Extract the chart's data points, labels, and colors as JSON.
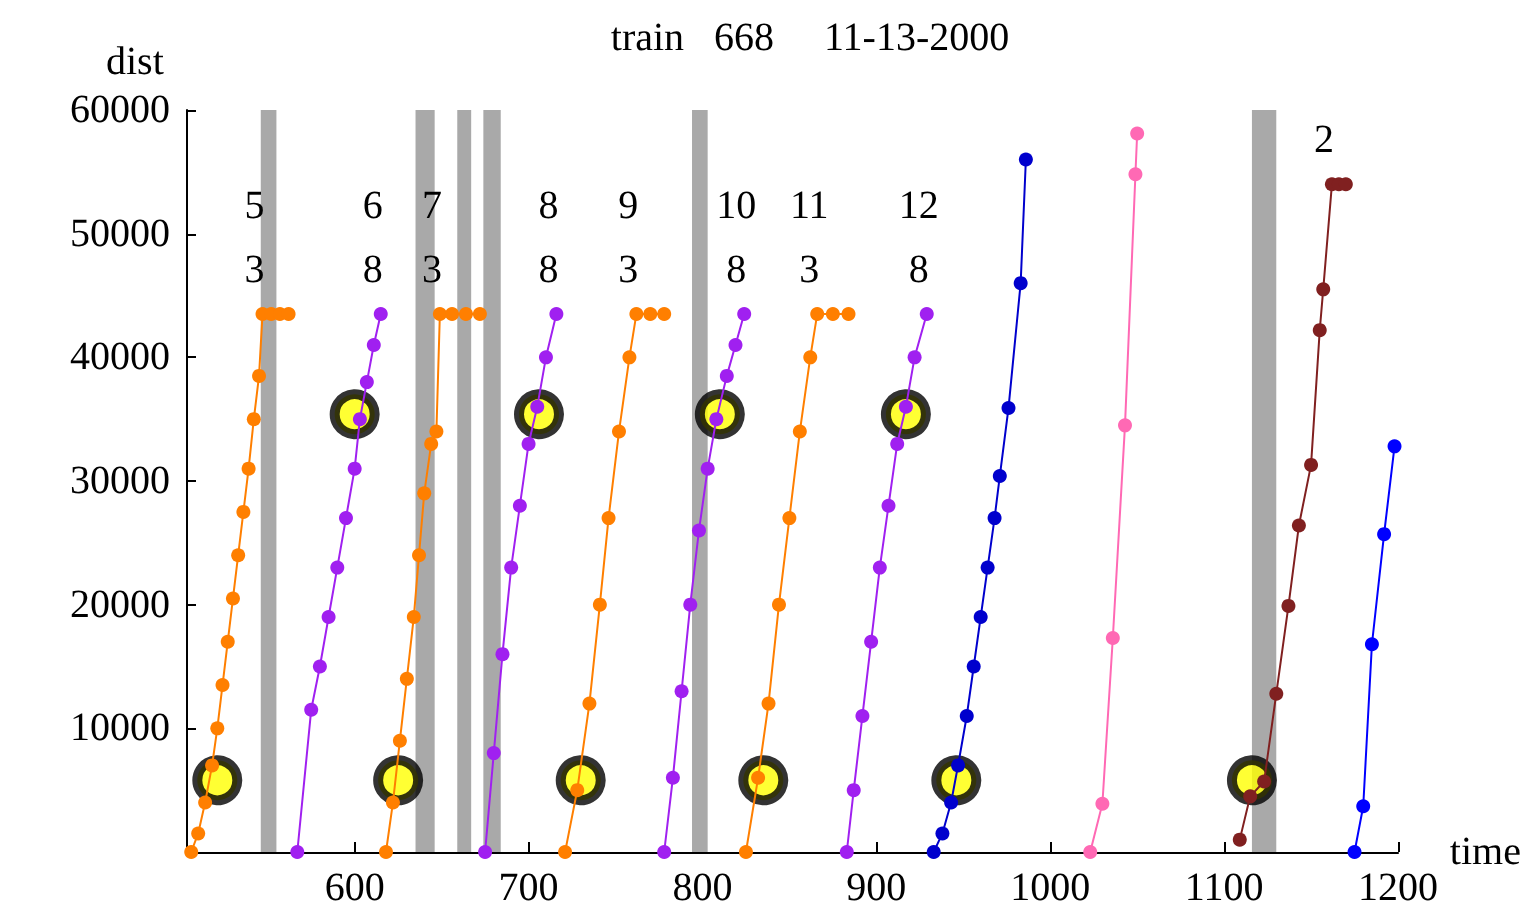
{
  "chart_data": {
    "type": "line",
    "title": "train   668     11-13-2000",
    "xlabel": "time",
    "ylabel": "dist",
    "xlim": [
      503,
      1200
    ],
    "xticks": [
      600,
      700,
      800,
      900,
      1000,
      1100,
      1200
    ],
    "ylim": [
      0,
      60000
    ],
    "yticks": [
      10000,
      20000,
      30000,
      40000,
      50000,
      60000
    ],
    "grid": false,
    "marker": "circle",
    "line_style": "solid",
    "bands": [
      {
        "axis": "x",
        "from": 546,
        "to": 555,
        "color": "#a9a9a9"
      },
      {
        "axis": "x",
        "from": 635,
        "to": 646,
        "color": "#a9a9a9"
      },
      {
        "axis": "x",
        "from": 659,
        "to": 667,
        "color": "#a9a9a9"
      },
      {
        "axis": "x",
        "from": 674,
        "to": 684,
        "color": "#a9a9a9"
      },
      {
        "axis": "x",
        "from": 794,
        "to": 803,
        "color": "#a9a9a9"
      },
      {
        "axis": "x",
        "from": 1116,
        "to": 1130,
        "color": "#a9a9a9"
      }
    ],
    "annotations": [
      {
        "text": "5\n3",
        "x": 547,
        "y": 43500
      },
      {
        "text": "6\n8",
        "x": 615,
        "y": 43500
      },
      {
        "text": "7\n3",
        "x": 649,
        "y": 43500
      },
      {
        "text": "8\n8",
        "x": 716,
        "y": 43500
      },
      {
        "text": "9\n3",
        "x": 762,
        "y": 43500
      },
      {
        "text": "10\n8",
        "x": 824,
        "y": 43500
      },
      {
        "text": "11\n3",
        "x": 866,
        "y": 43500
      },
      {
        "text": "12\n8",
        "x": 929,
        "y": 43500
      },
      {
        "text": "2",
        "x": 1162,
        "y": 54000
      }
    ],
    "series": [
      {
        "type": "scatter",
        "color": "#ffff00",
        "x": [
          521,
          625,
          730,
          835,
          946,
          1116,
          600,
          706,
          810,
          917
        ],
        "values": [
          5800,
          5800,
          5800,
          5800,
          5800,
          5800,
          35400,
          35400,
          35400,
          35400
        ]
      },
      {
        "color": "#ff7f00",
        "x": [
          506,
          510,
          514,
          518,
          521,
          524,
          527,
          530,
          533,
          536,
          539,
          542,
          545,
          547,
          552,
          557,
          562
        ],
        "values": [
          0,
          1500,
          4000,
          7000,
          10000,
          13500,
          17000,
          20500,
          24000,
          27500,
          31000,
          35000,
          38500,
          43500,
          43500,
          43500,
          43500
        ]
      },
      {
        "color": "#a020f0",
        "x": [
          567,
          575,
          580,
          585,
          590,
          595,
          600,
          603,
          607,
          611,
          615
        ],
        "values": [
          0,
          11500,
          15000,
          19000,
          23000,
          27000,
          31000,
          35000,
          38000,
          41000,
          43500
        ]
      },
      {
        "color": "#ff7f00",
        "x": [
          618,
          622,
          626,
          630,
          634,
          637,
          640,
          644,
          647,
          649,
          656,
          664,
          672
        ],
        "values": [
          0,
          4000,
          9000,
          14000,
          19000,
          24000,
          29000,
          33000,
          34000,
          43500,
          43500,
          43500,
          43500
        ]
      },
      {
        "color": "#a020f0",
        "x": [
          675,
          680,
          685,
          690,
          695,
          700,
          705,
          710,
          716
        ],
        "values": [
          0,
          8000,
          16000,
          23000,
          28000,
          33000,
          36000,
          40000,
          43500
        ]
      },
      {
        "color": "#ff7f00",
        "x": [
          721,
          728,
          735,
          741,
          746,
          752,
          758,
          762,
          770,
          778
        ],
        "values": [
          0,
          5000,
          12000,
          20000,
          27000,
          34000,
          40000,
          43500,
          43500,
          43500
        ]
      },
      {
        "color": "#a020f0",
        "x": [
          778,
          783,
          788,
          793,
          798,
          803,
          808,
          814,
          819,
          824
        ],
        "values": [
          0,
          6000,
          13000,
          20000,
          26000,
          31000,
          35000,
          38500,
          41000,
          43500
        ]
      },
      {
        "color": "#ff7f00",
        "x": [
          825,
          832,
          838,
          844,
          850,
          856,
          862,
          866,
          875,
          884
        ],
        "values": [
          0,
          6000,
          12000,
          20000,
          27000,
          34000,
          40000,
          43500,
          43500,
          43500
        ]
      },
      {
        "color": "#a020f0",
        "x": [
          883,
          887,
          892,
          897,
          902,
          907,
          912,
          917,
          922,
          929
        ],
        "values": [
          0,
          5000,
          11000,
          17000,
          23000,
          28000,
          33000,
          36000,
          40000,
          43500
        ]
      },
      {
        "color": "#0000cd",
        "x": [
          933,
          938,
          943,
          947,
          952,
          956,
          960,
          964,
          968,
          971,
          976,
          983,
          986
        ],
        "values": [
          0,
          1500,
          4000,
          7000,
          11000,
          15000,
          19000,
          23000,
          27000,
          30400,
          35900,
          46000,
          56000
        ]
      },
      {
        "color": "#ff69b4",
        "x": [
          1023,
          1030,
          1036,
          1043,
          1049,
          1050
        ],
        "values": [
          0,
          3900,
          17300,
          34500,
          54800,
          58100
        ]
      },
      {
        "color": "#802020",
        "x": [
          1109,
          1115,
          1123,
          1130,
          1137,
          1143,
          1150,
          1155,
          1157,
          1162,
          1166,
          1170
        ],
        "values": [
          1000,
          4500,
          5700,
          12800,
          19900,
          26400,
          31300,
          42200,
          45500,
          54000,
          54000,
          54000
        ]
      },
      {
        "color": "#0000ff",
        "x": [
          1175,
          1180,
          1185,
          1192,
          1198
        ],
        "values": [
          0,
          3700,
          16800,
          25700,
          32800
        ]
      }
    ]
  }
}
